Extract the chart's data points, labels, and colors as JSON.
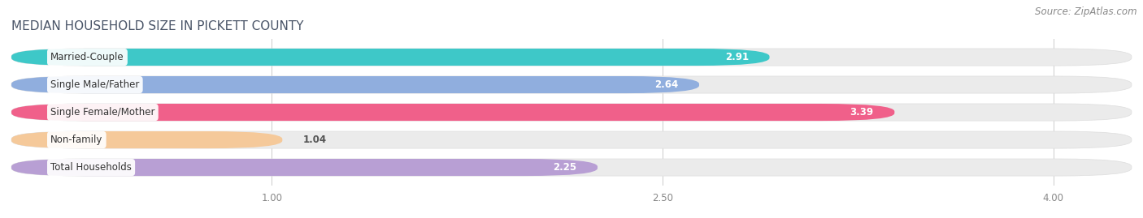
{
  "title": "MEDIAN HOUSEHOLD SIZE IN PICKETT COUNTY",
  "source": "Source: ZipAtlas.com",
  "categories": [
    "Married-Couple",
    "Single Male/Father",
    "Single Female/Mother",
    "Non-family",
    "Total Households"
  ],
  "values": [
    2.91,
    2.64,
    3.39,
    1.04,
    2.25
  ],
  "bar_colors": [
    "#3ec8c8",
    "#90aede",
    "#f0608a",
    "#f5c99a",
    "#b89fd4"
  ],
  "bar_bg_colors": [
    "#ebebeb",
    "#ebebeb",
    "#ebebeb",
    "#ebebeb",
    "#ebebeb"
  ],
  "xlim": [
    0,
    4.3
  ],
  "xmin": 0,
  "xmax": 4.3,
  "xticks": [
    1.0,
    2.5,
    4.0
  ],
  "title_fontsize": 11,
  "source_fontsize": 8.5,
  "label_fontsize": 8.5,
  "value_fontsize": 8.5,
  "background_color": "#ffffff"
}
